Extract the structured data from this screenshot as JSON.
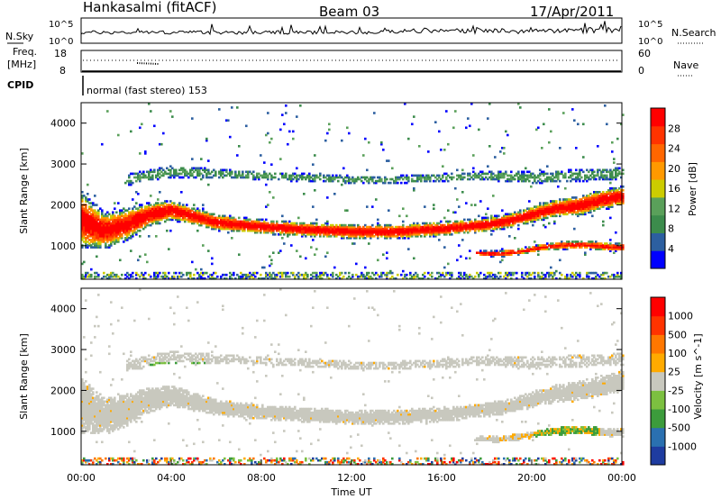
{
  "header": {
    "station": "Hankasalmi (fitACF)",
    "beam": "Beam 03",
    "date": "17/Apr/2011"
  },
  "top_panels": {
    "nsky_label": "N.Sky",
    "nsearch_label": "N.Search",
    "nsky_ticks": [
      "10^5",
      "10^0"
    ],
    "nsearch_ticks": [
      "10^5",
      "10^0"
    ],
    "freq_label_1": "Freq.",
    "freq_label_2": "[MHz]",
    "freq_ticks": [
      "18",
      "8"
    ],
    "nave_label": "Nave",
    "nave_ticks": [
      "60",
      "0"
    ],
    "cpid_label": "CPID",
    "cpid_text": "normal (fast stereo) 153"
  },
  "colors": {
    "power_scale": [
      "#0000ff",
      "#2c5fa0",
      "#3c8c4c",
      "#5aa05a",
      "#cccc00",
      "#ff9900",
      "#ff6600",
      "#ff3300",
      "#ff0000"
    ],
    "velocity_scale": [
      "#1e3ca0",
      "#2a70b0",
      "#3c9c3c",
      "#7cc040",
      "#c8c8be",
      "#ffaa00",
      "#ff7700",
      "#ff3300",
      "#ff0000"
    ],
    "ground_scatter": "#c8c8be"
  },
  "chart_data": [
    {
      "type": "heatmap",
      "name": "power",
      "ylabel": "Slant Range [km]",
      "xlabel": "Time UT",
      "x_ticks": [
        "00:00",
        "04:00",
        "08:00",
        "12:00",
        "16:00",
        "20:00",
        "00:00"
      ],
      "y_ticks": [
        "4000",
        "3000",
        "2000",
        "1000"
      ],
      "ylim": [
        180,
        4500
      ],
      "colorbar_label": "Power [dB]",
      "colorbar_ticks": [
        "28",
        "24",
        "20",
        "16",
        "12",
        "8",
        "4"
      ],
      "bands": [
        {
          "t": [
            0,
            1,
            2,
            3,
            4,
            5,
            6,
            8,
            10,
            12,
            14,
            16,
            18,
            19,
            20,
            21,
            22,
            23,
            24
          ],
          "center_km": [
            1600,
            1350,
            1500,
            1750,
            1850,
            1700,
            1550,
            1450,
            1380,
            1330,
            1330,
            1400,
            1500,
            1600,
            1750,
            1900,
            1950,
            2100,
            2200
          ],
          "half_width_km": [
            700,
            450,
            400,
            300,
            250,
            220,
            200,
            180,
            180,
            180,
            180,
            180,
            180,
            180,
            200,
            220,
            250,
            250,
            250
          ]
        },
        {
          "t": [
            17.5,
            18.5,
            19.5,
            20.5,
            21.5,
            22.5,
            23.5,
            24
          ],
          "center_km": [
            800,
            780,
            850,
            950,
            1000,
            1000,
            950,
            950
          ],
          "half_width_km": [
            60,
            80,
            80,
            80,
            100,
            100,
            100,
            100
          ]
        },
        {
          "t": [
            2,
            4,
            6,
            8,
            10,
            12,
            14,
            16,
            18,
            20,
            22,
            24
          ],
          "center_km": [
            2600,
            2800,
            2750,
            2700,
            2650,
            2600,
            2600,
            2650,
            2700,
            2650,
            2700,
            2750
          ],
          "half_width_km": [
            150,
            150,
            120,
            100,
            100,
            100,
            100,
            100,
            120,
            150,
            150,
            150
          ]
        }
      ]
    },
    {
      "type": "heatmap",
      "name": "velocity",
      "ylabel": "Slant Range [km]",
      "xlabel": "Time UT",
      "x_ticks": [
        "00:00",
        "04:00",
        "08:00",
        "12:00",
        "16:00",
        "20:00",
        "00:00"
      ],
      "y_ticks": [
        "4000",
        "3000",
        "2000",
        "1000"
      ],
      "ylim": [
        180,
        4500
      ],
      "colorbar_label": "Velocity [m s^-1]",
      "colorbar_ticks": [
        "1000",
        "500",
        "100",
        "25",
        "-25",
        "-100",
        "-500",
        "-1000"
      ]
    }
  ]
}
